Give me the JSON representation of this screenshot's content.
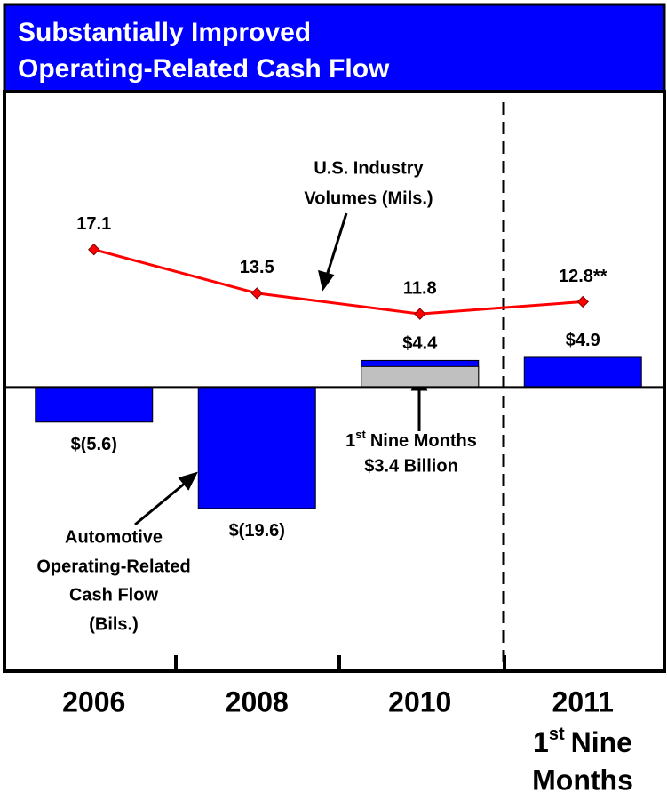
{
  "chart_data": {
    "type": "bar-line",
    "title": [
      "Substantially Improved",
      "Operating-Related Cash Flow"
    ],
    "categories": [
      "2006",
      "2008",
      "2010",
      "2011"
    ],
    "category_note": {
      "base": "1",
      "sup": "st",
      "rest": "Nine",
      "last": "Months"
    },
    "series": [
      {
        "name": "Automotive Operating-Related Cash Flow (Bils.)",
        "color": "#0000ff",
        "values": [
          -5.6,
          -19.6,
          4.4,
          4.9
        ],
        "value_labels": [
          "$(5.6)",
          "$(19.6)",
          "$4.4",
          "$4.9"
        ]
      },
      {
        "name": "U.S. Industry Volumes (Mils.)",
        "color": "#ff0000",
        "axis": "y2",
        "values": [
          17.1,
          13.5,
          11.8,
          12.8
        ],
        "value_labels": [
          "17.1",
          "13.5",
          "11.8",
          "12.8**"
        ]
      }
    ],
    "inner_bars": {
      "color": "#c0c0c0",
      "values": [
        null,
        null,
        3.4,
        null
      ]
    },
    "ylim": [
      -46,
      48
    ],
    "y2lim": [
      -17.6,
      30.1
    ],
    "annotations": {
      "volumes": [
        "U.S. Industry",
        "Volumes (Mils.)"
      ],
      "cash_flow": [
        "Automotive",
        "Operating-Related",
        "Cash Flow",
        "(Bils.)"
      ],
      "nine_months": {
        "base": "1",
        "sup": "st",
        "rest": "Nine Months",
        "second": "$3.4 Billion"
      }
    }
  }
}
